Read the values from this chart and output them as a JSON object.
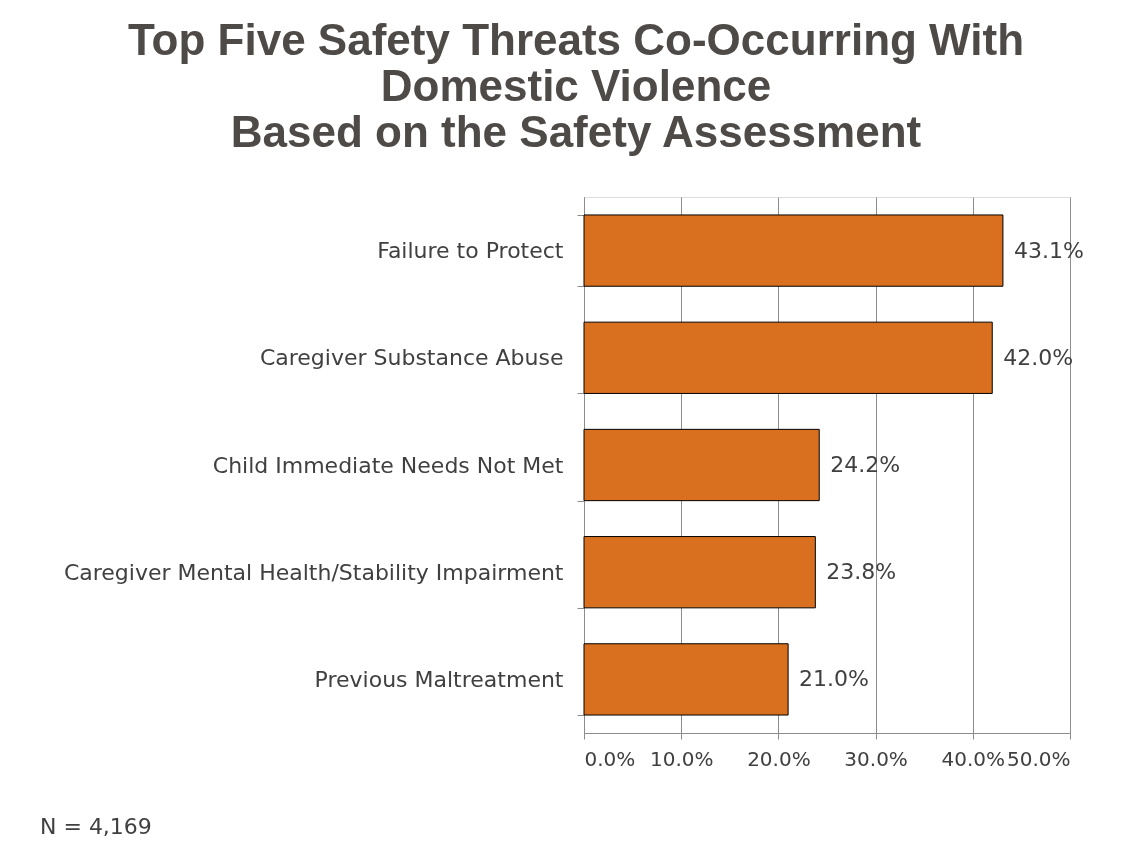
{
  "chart_data": {
    "type": "bar",
    "orientation": "horizontal",
    "title": "Top Five Safety Threats Co-Occurring With\nDomestic Violence\nBased on the Safety Assessment",
    "categories": [
      "Failure to Protect",
      "Caregiver Substance Abuse",
      "Child Immediate Needs Not Met",
      "Caregiver Mental Health/Stability Impairment",
      "Previous Maltreatment"
    ],
    "values": [
      43.1,
      42.0,
      24.2,
      23.8,
      21.0
    ],
    "color": "#d97020",
    "value_labels": [
      "43.1%",
      "42.0%",
      "24.2%",
      "23.8%",
      "21.0%"
    ],
    "xlim": [
      0,
      50
    ],
    "xticks": [
      {
        "value": 0,
        "label": "0.0%"
      },
      {
        "value": 10,
        "label": "10.0%"
      },
      {
        "value": 20,
        "label": "20.0%"
      },
      {
        "value": 30,
        "label": "30.0%"
      },
      {
        "value": 40,
        "label": "40.0%"
      },
      {
        "value": 50,
        "label": "50.0%"
      }
    ],
    "grid": "x",
    "annotations": [
      "N = 4,169"
    ]
  }
}
